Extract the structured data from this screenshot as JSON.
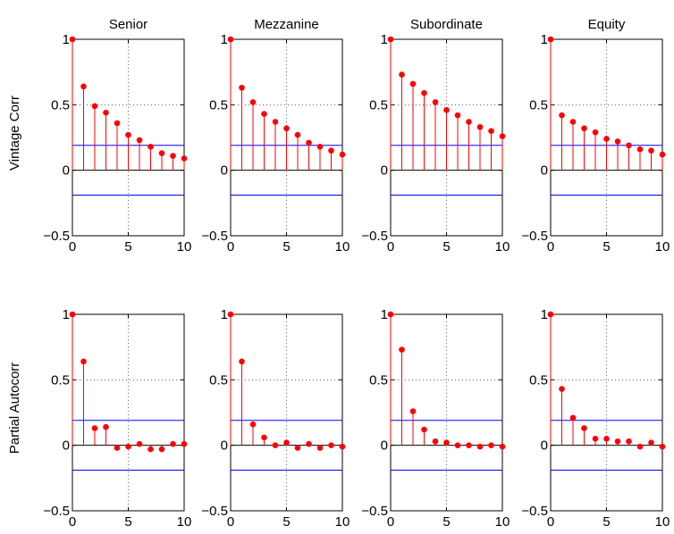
{
  "figure": {
    "row_labels": [
      "Vintage Corr",
      "Partial Autocorr"
    ],
    "column_titles": [
      "Senior",
      "Mezzanine",
      "Subordinate",
      "Equity"
    ]
  },
  "style": {
    "stem_color": "#ff0000",
    "bound_color": "#0000ff",
    "zero_color": "#000000"
  },
  "chart_data": [
    {
      "type": "stem",
      "row": 0,
      "col": 0,
      "title": "Senior",
      "ylabel": "Vintage Corr",
      "xlim": [
        0,
        10
      ],
      "ylim": [
        -0.5,
        1
      ],
      "xticks": [
        0,
        5,
        10
      ],
      "yticks": [
        -0.5,
        0,
        0.5,
        1
      ],
      "grid": true,
      "confidence_bounds": [
        0.19,
        -0.19
      ],
      "x": [
        0,
        1,
        2,
        3,
        4,
        5,
        6,
        7,
        8,
        9,
        10
      ],
      "values": [
        1,
        0.64,
        0.49,
        0.44,
        0.36,
        0.27,
        0.23,
        0.18,
        0.13,
        0.11,
        0.09
      ]
    },
    {
      "type": "stem",
      "row": 0,
      "col": 1,
      "title": "Mezzanine",
      "ylabel": "",
      "xlim": [
        0,
        10
      ],
      "ylim": [
        -0.5,
        1
      ],
      "xticks": [
        0,
        5,
        10
      ],
      "yticks": [
        -0.5,
        0,
        0.5,
        1
      ],
      "grid": true,
      "confidence_bounds": [
        0.19,
        -0.19
      ],
      "x": [
        0,
        1,
        2,
        3,
        4,
        5,
        6,
        7,
        8,
        9,
        10
      ],
      "values": [
        1,
        0.63,
        0.52,
        0.43,
        0.37,
        0.32,
        0.27,
        0.21,
        0.18,
        0.15,
        0.12
      ]
    },
    {
      "type": "stem",
      "row": 0,
      "col": 2,
      "title": "Subordinate",
      "ylabel": "",
      "xlim": [
        0,
        10
      ],
      "ylim": [
        -0.5,
        1
      ],
      "xticks": [
        0,
        5,
        10
      ],
      "yticks": [
        -0.5,
        0,
        0.5,
        1
      ],
      "grid": true,
      "confidence_bounds": [
        0.19,
        -0.19
      ],
      "x": [
        0,
        1,
        2,
        3,
        4,
        5,
        6,
        7,
        8,
        9,
        10
      ],
      "values": [
        1,
        0.73,
        0.66,
        0.59,
        0.52,
        0.46,
        0.42,
        0.37,
        0.33,
        0.3,
        0.26
      ]
    },
    {
      "type": "stem",
      "row": 0,
      "col": 3,
      "title": "Equity",
      "ylabel": "",
      "xlim": [
        0,
        10
      ],
      "ylim": [
        -0.5,
        1
      ],
      "xticks": [
        0,
        5,
        10
      ],
      "yticks": [
        -0.5,
        0,
        0.5,
        1
      ],
      "grid": true,
      "confidence_bounds": [
        0.19,
        -0.19
      ],
      "x": [
        0,
        1,
        2,
        3,
        4,
        5,
        6,
        7,
        8,
        9,
        10
      ],
      "values": [
        1,
        0.42,
        0.37,
        0.32,
        0.29,
        0.24,
        0.22,
        0.19,
        0.16,
        0.15,
        0.12
      ]
    },
    {
      "type": "stem",
      "row": 1,
      "col": 0,
      "title": "",
      "ylabel": "Partial Autocorr",
      "xlim": [
        0,
        10
      ],
      "ylim": [
        -0.5,
        1
      ],
      "xticks": [
        0,
        5,
        10
      ],
      "yticks": [
        -0.5,
        0,
        0.5,
        1
      ],
      "grid": true,
      "confidence_bounds": [
        0.19,
        -0.19
      ],
      "x": [
        0,
        1,
        2,
        3,
        4,
        5,
        6,
        7,
        8,
        9,
        10
      ],
      "values": [
        1,
        0.64,
        0.13,
        0.14,
        -0.02,
        -0.01,
        0.01,
        -0.03,
        -0.03,
        0.01,
        0.01
      ]
    },
    {
      "type": "stem",
      "row": 1,
      "col": 1,
      "title": "",
      "ylabel": "",
      "xlim": [
        0,
        10
      ],
      "ylim": [
        -0.5,
        1
      ],
      "xticks": [
        0,
        5,
        10
      ],
      "yticks": [
        -0.5,
        0,
        0.5,
        1
      ],
      "grid": true,
      "confidence_bounds": [
        0.19,
        -0.19
      ],
      "x": [
        0,
        1,
        2,
        3,
        4,
        5,
        6,
        7,
        8,
        9,
        10
      ],
      "values": [
        1,
        0.64,
        0.16,
        0.06,
        0.0,
        0.02,
        -0.02,
        0.01,
        -0.02,
        0.0,
        -0.01
      ]
    },
    {
      "type": "stem",
      "row": 1,
      "col": 2,
      "title": "",
      "ylabel": "",
      "xlim": [
        0,
        10
      ],
      "ylim": [
        -0.5,
        1
      ],
      "xticks": [
        0,
        5,
        10
      ],
      "yticks": [
        -0.5,
        0,
        0.5,
        1
      ],
      "grid": true,
      "confidence_bounds": [
        0.19,
        -0.19
      ],
      "x": [
        0,
        1,
        2,
        3,
        4,
        5,
        6,
        7,
        8,
        9,
        10
      ],
      "values": [
        1,
        0.73,
        0.26,
        0.12,
        0.03,
        0.02,
        0.0,
        0.0,
        -0.01,
        0.0,
        -0.01
      ]
    },
    {
      "type": "stem",
      "row": 1,
      "col": 3,
      "title": "",
      "ylabel": "",
      "xlim": [
        0,
        10
      ],
      "ylim": [
        -0.5,
        1
      ],
      "xticks": [
        0,
        5,
        10
      ],
      "yticks": [
        -0.5,
        0,
        0.5,
        1
      ],
      "grid": true,
      "confidence_bounds": [
        0.19,
        -0.19
      ],
      "x": [
        0,
        1,
        2,
        3,
        4,
        5,
        6,
        7,
        8,
        9,
        10
      ],
      "values": [
        1,
        0.43,
        0.21,
        0.13,
        0.05,
        0.05,
        0.03,
        0.03,
        -0.01,
        0.02,
        -0.01
      ]
    }
  ]
}
